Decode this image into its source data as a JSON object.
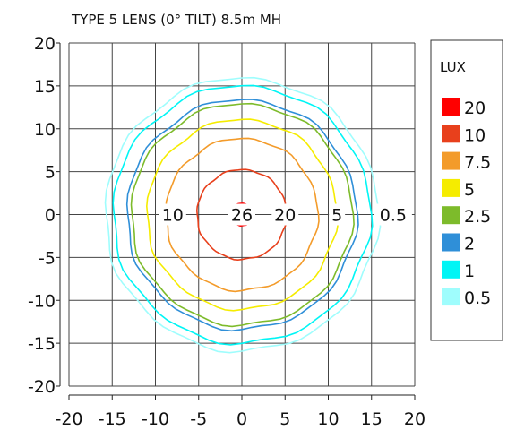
{
  "chart_data": {
    "type": "contour",
    "title": "TYPE 5 LENS (0° TILT) 8.5m MH",
    "xlabel": "",
    "ylabel": "",
    "xlim": [
      -20,
      20
    ],
    "ylim": [
      -20,
      20
    ],
    "x_ticks": [
      "-20",
      "-15",
      "-10",
      "-5",
      "0",
      "5",
      "10",
      "15",
      "20"
    ],
    "y_ticks": [
      "20",
      "15",
      "10",
      "5",
      "0",
      "-5",
      "-10",
      "-15",
      "-20"
    ],
    "grid": true,
    "legend": {
      "title": "LUX",
      "position": "right",
      "entries": [
        {
          "label": "20",
          "color": "#ff0000"
        },
        {
          "label": "10",
          "color": "#e8401c"
        },
        {
          "label": "7.5",
          "color": "#f39b2a"
        },
        {
          "label": "5",
          "color": "#f5ec00"
        },
        {
          "label": "2.5",
          "color": "#7dbb2b"
        },
        {
          "label": "2",
          "color": "#2f8fd8"
        },
        {
          "label": "1",
          "color": "#00f5f5"
        },
        {
          "label": "0.5",
          "color": "#9ffdfd"
        }
      ]
    },
    "contours": [
      {
        "level": 0.5,
        "radius": 15.8,
        "color": "#9ffdfd"
      },
      {
        "level": 1,
        "radius": 14.9,
        "color": "#00f5f5"
      },
      {
        "level": 2,
        "radius": 13.3,
        "color": "#2f8fd8"
      },
      {
        "level": 2.5,
        "radius": 12.8,
        "color": "#7dbb2b"
      },
      {
        "level": 5,
        "radius": 11.0,
        "color": "#f5ec00"
      },
      {
        "level": 7.5,
        "radius": 8.8,
        "color": "#f39b2a"
      },
      {
        "level": 10,
        "radius": 5.2,
        "color": "#e8401c"
      },
      {
        "level": 20,
        "radius": 1.3,
        "color": "#ff0000"
      }
    ],
    "annotations": [
      {
        "text": "10",
        "x": -8.0,
        "y": 0
      },
      {
        "text": "26",
        "x": 0,
        "y": 0
      },
      {
        "text": "20",
        "x": 5.0,
        "y": 0
      },
      {
        "text": "5",
        "x": 11.0,
        "y": 0
      },
      {
        "text": "0.5",
        "x": 17.5,
        "y": 0
      }
    ]
  }
}
